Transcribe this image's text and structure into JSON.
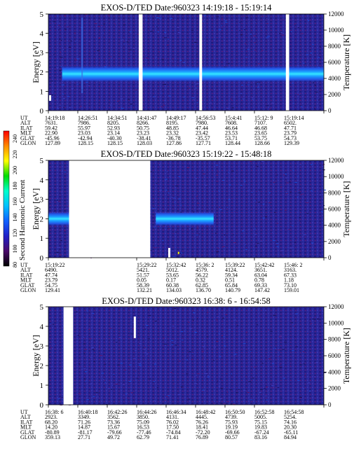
{
  "colors": {
    "background": "#ffffff",
    "noise_dark": "#1f1a80",
    "noise_mid": "#2e2aa0",
    "band_core": "#35e6ff",
    "band_inner": "#1a9cff",
    "band_outer": "#2456e8",
    "gap": "#ffffff"
  },
  "colorbar": {
    "label": "Second Harmonic Current",
    "ticks": [
      "240",
      "220",
      "200",
      "180",
      "160",
      "140",
      "120",
      "100",
      "80"
    ],
    "stops": [
      "#ff0000",
      "#ff8a00",
      "#ffff00",
      "#00dd00",
      "#00ffcc",
      "#00c0ff",
      "#1060ff",
      "#2020c8",
      "#4a0a6a",
      "#000000"
    ]
  },
  "ephemeris_labels": [
    "UT",
    "ALT",
    "ILAT",
    "MLT",
    "GLAT",
    "GLON"
  ],
  "chart_data": [
    {
      "type": "heatmap",
      "title": "EXOS-D/TED",
      "date": "Date:960323",
      "time_range": "14:19:18 - 15:19:14",
      "ylabel": "Energy [eV]",
      "ylabel_right": "Temperature [K]",
      "y_ticks": [
        "0",
        "1",
        "2",
        "3",
        "4",
        "5"
      ],
      "ylim": [
        0,
        5
      ],
      "y_right_ticks": [
        "0",
        "2000",
        "4000",
        "6000",
        "8000",
        "10000",
        "12000"
      ],
      "y_right_lim": [
        0,
        12000
      ],
      "band_center_ev": 1.9,
      "band_width_ev": 0.8,
      "band_span": [
        0.05,
        1.0
      ],
      "gaps": [
        [
          0.328,
          0.342
        ],
        [
          0.548,
          0.558
        ],
        [
          0.862,
          0.874
        ]
      ],
      "table": {
        "UT": [
          "14:19:18",
          "14:26:51",
          "14:34:51",
          "14:41:47",
          "14:49:17",
          "14:56:53",
          "15:4:41",
          "15:12: 9",
          "15:19:14"
        ],
        "ALT": [
          "7631.",
          "7986.",
          "8205.",
          "8266.",
          "8195.",
          "7980.",
          "7608.",
          "7107.",
          "6502."
        ],
        "ILAT": [
          "59.42",
          "55.97",
          "52.93",
          "50.75",
          "48.85",
          "47.44",
          "46.64",
          "46.68",
          "47.71"
        ],
        "MLT": [
          "22.90",
          "23.03",
          "23.14",
          "23.23",
          "23.32",
          "23.42",
          "23.53",
          "23.65",
          "23.79"
        ],
        "GLAT": [
          "-45.96",
          "-42.94",
          "-40.30",
          "-38.41",
          "-36.78",
          "-35.57",
          "53.71",
          "53.75",
          "54.73"
        ],
        "GLON": [
          "127.89",
          "128.15",
          "128.15",
          "128.03",
          "127.86",
          "127.71",
          "128.44",
          "128.66",
          "129.39"
        ]
      }
    },
    {
      "type": "heatmap",
      "title": "EXOS-D/TED",
      "date": "Date:960323",
      "time_range": "15:19:22 - 15:48:18",
      "ylabel": "Energy [eV]",
      "ylabel_right": "Temperature [K]",
      "y_ticks": [
        "0",
        "1",
        "2",
        "3",
        "4",
        "5"
      ],
      "ylim": [
        0,
        5
      ],
      "y_right_ticks": [
        "0",
        "2000",
        "4000",
        "6000",
        "8000",
        "10000",
        "12000"
      ],
      "y_right_lim": [
        0,
        12000
      ],
      "band_center_ev": 2.0,
      "band_width_ev": 0.7,
      "band_segments": [
        [
          0.0,
          0.075
        ],
        [
          0.39,
          0.6
        ]
      ],
      "gaps": [
        [
          0.075,
          0.37
        ]
      ],
      "table": {
        "UT": [
          "15:19:22",
          "",
          "",
          "15:29:22",
          "15:32:42",
          "15:36: 2",
          "15:39:22",
          "15:42:42",
          "15:46: 2"
        ],
        "ALT": [
          "6490.",
          "",
          "",
          "5421.",
          "5012.",
          "4579.",
          "4124.",
          "3651.",
          "3163."
        ],
        "ILAT": [
          "47.74",
          "",
          "",
          "51.57",
          "53.65",
          "56.22",
          "59.34",
          "63.04",
          "67.33"
        ],
        "MLT": [
          "23.79",
          "",
          "",
          "0.05",
          "0.17",
          "0.32",
          "0.51",
          "0.78",
          "1.18"
        ],
        "GLAT": [
          "54.75",
          "",
          "",
          "58.39",
          "60.38",
          "62.85",
          "65.84",
          "69.33",
          "73.10"
        ],
        "GLON": [
          "129.41",
          "",
          "",
          "132.21",
          "134.03",
          "136.70",
          "140.79",
          "147.42",
          "159.01"
        ]
      }
    },
    {
      "type": "heatmap",
      "title": "EXOS-D/TED",
      "date": "Date:960323",
      "time_range": "16:38: 6 - 16:54:58",
      "ylabel": "Energy [eV]",
      "ylabel_right": "Temperature [K]",
      "y_ticks": [
        "0",
        "1",
        "2",
        "3",
        "4",
        "5"
      ],
      "ylim": [
        0,
        5
      ],
      "y_right_ticks": [
        "0",
        "2000",
        "4000",
        "6000",
        "8000",
        "10000",
        "12000"
      ],
      "y_right_lim": [
        0,
        12000
      ],
      "gaps": [
        [
          0.055,
          0.09
        ]
      ],
      "table": {
        "UT": [
          "16:38: 6",
          "16:40:18",
          "16:42:26",
          "16:44:26",
          "16:46:34",
          "16:48:42",
          "16:50:50",
          "16:52:58",
          "16:54:58"
        ],
        "ALT": [
          "2923.",
          "3349.",
          "3562.",
          "3850.",
          "4131.",
          "4445.",
          "4739.",
          "5005.",
          "5254."
        ],
        "ILAT": [
          "68.20",
          "71.26",
          "73.36",
          "75.09",
          "76.02",
          "76.26",
          "75.93",
          "75.15",
          "74.16"
        ],
        "MLT": [
          "14.20",
          "14.87",
          "15.67",
          "16.53",
          "17.50",
          "18.41",
          "19.19",
          "19.83",
          "20.30"
        ],
        "GLAT": [
          "-80.89",
          "-81.17",
          "-79.66",
          "-77.46",
          "-74.84",
          "-72.20",
          "-69.66",
          "-67.24",
          "-65.11"
        ],
        "GLON": [
          "359.13",
          "27.71",
          "49.72",
          "62.79",
          "71.41",
          "76.89",
          "80.57",
          "83.16",
          "84.94"
        ]
      }
    }
  ]
}
